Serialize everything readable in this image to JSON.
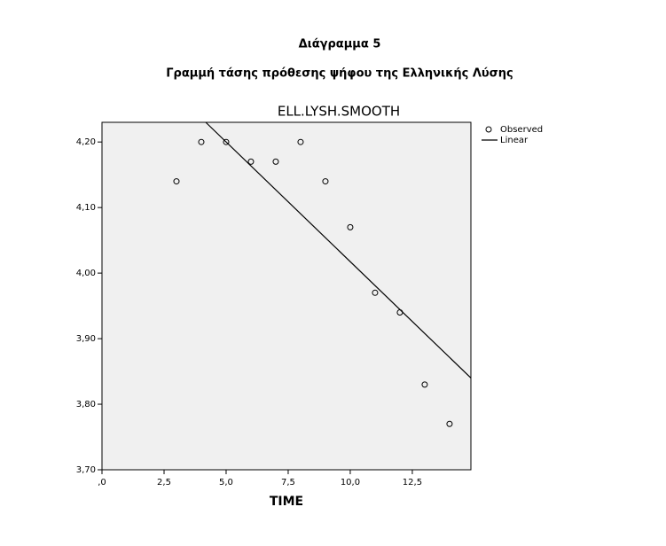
{
  "header": {
    "title": "Διάγραμμα 5",
    "subtitle": "Γραμμή τάσης πρόθεσης ψήφου της Ελληνικής Λύσης"
  },
  "chart_data": {
    "type": "scatter",
    "title": "ELL.LYSH.SMOOTH",
    "x_label": "TIME",
    "series": [
      {
        "name": "Observed",
        "type": "scatter",
        "color": "#000000",
        "x": [
          3,
          4,
          5,
          6,
          7,
          8,
          9,
          10,
          11,
          12,
          13,
          14
        ],
        "values": [
          4.14,
          4.2,
          4.2,
          4.17,
          4.17,
          4.2,
          4.14,
          4.07,
          3.97,
          3.94,
          3.83,
          3.77
        ]
      },
      {
        "name": "Linear",
        "type": "line",
        "color": "#000000",
        "x": [
          4.18,
          14.86
        ],
        "values": [
          4.23,
          3.84
        ]
      }
    ],
    "xlim": [
      0,
      14.86
    ],
    "ylim": [
      3.7,
      4.23
    ],
    "xticks": [
      {
        "value": 0,
        "label": ",0"
      },
      {
        "value": 2.5,
        "label": "2,5"
      },
      {
        "value": 5,
        "label": "5,0"
      },
      {
        "value": 7.5,
        "label": "7,5"
      },
      {
        "value": 10,
        "label": "10,0"
      },
      {
        "value": 12.5,
        "label": "12,5"
      }
    ],
    "yticks": [
      {
        "value": 3.7,
        "label": "3,70"
      },
      {
        "value": 3.8,
        "label": "3,80"
      },
      {
        "value": 3.9,
        "label": "3,90"
      },
      {
        "value": 4.0,
        "label": "4,00"
      },
      {
        "value": 4.1,
        "label": "4,10"
      },
      {
        "value": 4.2,
        "label": "4,20"
      }
    ],
    "background": "#f0f0f0",
    "legend": "right"
  }
}
